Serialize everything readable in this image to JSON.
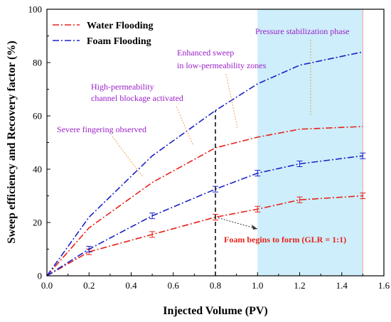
{
  "chart_data": {
    "type": "line",
    "xlabel": "Injected Volume (PV)",
    "ylabel": "Sweep efficiency and Recovery factor  (%)",
    "xlim": [
      0.0,
      1.6
    ],
    "ylim": [
      0,
      100
    ],
    "xticks": [
      "0.0",
      "0.2",
      "0.4",
      "0.6",
      "0.8",
      "1.0",
      "1.2",
      "1.4",
      "1.6"
    ],
    "yticks": [
      "0",
      "20",
      "40",
      "60",
      "80",
      "100"
    ],
    "legend": {
      "placement": "top-left",
      "entries": [
        {
          "label": "Water Flooding",
          "color": "#e8221b"
        },
        {
          "label": "Foam Flooding",
          "color": "#1b22c8"
        }
      ]
    },
    "shaded_region": {
      "x_start": 1.0,
      "x_end": 1.5,
      "color": "#cdeefa"
    },
    "series": [
      {
        "group": "Water Flooding",
        "line": "upper",
        "color": "#e8221b",
        "x": [
          0.0,
          0.2,
          0.5,
          0.8,
          1.0,
          1.2,
          1.5
        ],
        "y": [
          0,
          18,
          35,
          48,
          52,
          55,
          56
        ]
      },
      {
        "group": "Foam Flooding",
        "line": "upper",
        "color": "#1b22c8",
        "x": [
          0.0,
          0.2,
          0.5,
          0.8,
          1.0,
          1.2,
          1.5
        ],
        "y": [
          0,
          22,
          45,
          62,
          72,
          79,
          84
        ]
      },
      {
        "group": "Water Flooding",
        "line": "lower",
        "color": "#e8221b",
        "error_bars": true,
        "x": [
          0.0,
          0.2,
          0.5,
          0.8,
          1.0,
          1.2,
          1.5
        ],
        "y": [
          0,
          9,
          15.5,
          22,
          25,
          28.5,
          30
        ]
      },
      {
        "group": "Foam Flooding",
        "line": "lower",
        "color": "#1b22c8",
        "error_bars": true,
        "x": [
          0.0,
          0.2,
          0.5,
          0.8,
          1.0,
          1.2,
          1.5
        ],
        "y": [
          0,
          10,
          22.5,
          32.5,
          38.5,
          42,
          45
        ]
      }
    ],
    "vertical_marker": {
      "x": 0.8,
      "y_from": 0,
      "y_to": 62
    },
    "annotations": [
      {
        "text": "Pressure stabilization phase",
        "color": "#9b1fc9"
      },
      {
        "text": "Enhanced sweep",
        "color": "#9b1fc9"
      },
      {
        "text": "in low-permeability zones",
        "color": "#9b1fc9"
      },
      {
        "text": "High-permeability",
        "color": "#9b1fc9"
      },
      {
        "text": "channel blockage activated",
        "color": "#9b1fc9"
      },
      {
        "text": "Severe fingering observed",
        "color": "#9b1fc9"
      },
      {
        "text": "Foam begins to form (GLR = 1:1)",
        "color": "#e8221b"
      }
    ]
  }
}
